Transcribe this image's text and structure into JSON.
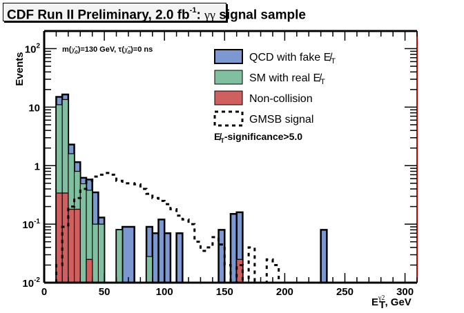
{
  "title": {
    "main": "CDF Run II Preliminary, 2.0 fb",
    "sup": "-1",
    "suffix": ": ",
    "greek": "γγ",
    "tail": " signal sample"
  },
  "chart_data": {
    "type": "bar",
    "subtype": "stacked-histogram-log",
    "title": "CDF Run II Preliminary, 2.0 fb^-1: γγ signal sample",
    "xlabel": "E_T^γ2, GeV",
    "ylabel": "Events",
    "xlim": [
      0,
      310
    ],
    "ylim": [
      0.01,
      200
    ],
    "yscale": "log",
    "bin_width": 5,
    "x_ticks": [
      0,
      50,
      100,
      150,
      200,
      250,
      300
    ],
    "x_tick_labels": [
      "0",
      "50",
      "100",
      "150",
      "200",
      "250",
      "300"
    ],
    "y_ticks": [
      0.01,
      0.1,
      1,
      10,
      100
    ],
    "y_tick_labels": [
      {
        "base": "10",
        "exp": "-2"
      },
      {
        "base": "10",
        "exp": "-1"
      },
      {
        "base": "1",
        "exp": ""
      },
      {
        "base": "10",
        "exp": ""
      },
      {
        "base": "10",
        "exp": "2"
      }
    ],
    "annotation": "m(χ̃₀)=130 GeV, τ(χ̃₀)=0 ns",
    "cut_label": "E̸T-significance>5.0",
    "legend_position": "top-right",
    "series": [
      {
        "name": "Non-collision",
        "color": "#d06060",
        "bins": [
          {
            "x0": 10,
            "x1": 15,
            "value": 0.34
          },
          {
            "x0": 15,
            "x1": 20,
            "value": 0.34
          },
          {
            "x0": 20,
            "x1": 25,
            "value": 0.18
          },
          {
            "x0": 25,
            "x1": 30,
            "value": 0.18
          },
          {
            "x0": 35,
            "x1": 40,
            "value": 0.025
          },
          {
            "x0": 160,
            "x1": 165,
            "value": 0.025
          }
        ]
      },
      {
        "name": "SM with real E̸T",
        "color": "#80c0a0",
        "bins": [
          {
            "x0": 10,
            "x1": 15,
            "value": 11.0
          },
          {
            "x0": 15,
            "x1": 20,
            "value": 13.5
          },
          {
            "x0": 20,
            "x1": 25,
            "value": 1.6
          },
          {
            "x0": 25,
            "x1": 30,
            "value": 0.8
          },
          {
            "x0": 30,
            "x1": 35,
            "value": 0.49
          },
          {
            "x0": 35,
            "x1": 40,
            "value": 0.38
          },
          {
            "x0": 40,
            "x1": 45,
            "value": 0.1
          },
          {
            "x0": 45,
            "x1": 50,
            "value": 0.1
          },
          {
            "x0": 60,
            "x1": 65,
            "value": 0.08
          },
          {
            "x0": 85,
            "x1": 90,
            "value": 0.028
          }
        ]
      },
      {
        "name": "QCD with fake E̸T",
        "color": "#7b98d0",
        "bins": [
          {
            "x0": 10,
            "x1": 15,
            "value": 15.0
          },
          {
            "x0": 15,
            "x1": 20,
            "value": 16.5
          },
          {
            "x0": 20,
            "x1": 25,
            "value": 2.3
          },
          {
            "x0": 25,
            "x1": 30,
            "value": 1.15
          },
          {
            "x0": 30,
            "x1": 35,
            "value": 0.62
          },
          {
            "x0": 35,
            "x1": 40,
            "value": 0.58
          },
          {
            "x0": 40,
            "x1": 45,
            "value": 0.35
          },
          {
            "x0": 45,
            "x1": 50,
            "value": 0.13
          },
          {
            "x0": 60,
            "x1": 65,
            "value": 0.08
          },
          {
            "x0": 65,
            "x1": 75,
            "value": 0.09
          },
          {
            "x0": 85,
            "x1": 90,
            "value": 0.09
          },
          {
            "x0": 90,
            "x1": 95,
            "value": 0.07
          },
          {
            "x0": 95,
            "x1": 100,
            "value": 0.12
          },
          {
            "x0": 100,
            "x1": 105,
            "value": 0.07
          },
          {
            "x0": 110,
            "x1": 115,
            "value": 0.07
          },
          {
            "x0": 145,
            "x1": 150,
            "value": 0.08
          },
          {
            "x0": 155,
            "x1": 160,
            "value": 0.15
          },
          {
            "x0": 160,
            "x1": 165,
            "value": 0.16
          },
          {
            "x0": 230,
            "x1": 235,
            "value": 0.08
          }
        ]
      },
      {
        "name": "GMSB signal",
        "style": "dashed-line",
        "color": "#000000",
        "points": [
          {
            "x0": 10,
            "x1": 15,
            "value": 0.02
          },
          {
            "x0": 15,
            "x1": 20,
            "value": 0.09
          },
          {
            "x0": 20,
            "x1": 25,
            "value": 0.2
          },
          {
            "x0": 25,
            "x1": 30,
            "value": 0.28
          },
          {
            "x0": 30,
            "x1": 35,
            "value": 0.4
          },
          {
            "x0": 35,
            "x1": 40,
            "value": 0.55
          },
          {
            "x0": 40,
            "x1": 45,
            "value": 0.65
          },
          {
            "x0": 45,
            "x1": 50,
            "value": 0.7
          },
          {
            "x0": 50,
            "x1": 55,
            "value": 0.75
          },
          {
            "x0": 55,
            "x1": 60,
            "value": 0.7
          },
          {
            "x0": 60,
            "x1": 65,
            "value": 0.55
          },
          {
            "x0": 65,
            "x1": 75,
            "value": 0.5
          },
          {
            "x0": 75,
            "x1": 80,
            "value": 0.48
          },
          {
            "x0": 80,
            "x1": 85,
            "value": 0.4
          },
          {
            "x0": 85,
            "x1": 90,
            "value": 0.33
          },
          {
            "x0": 90,
            "x1": 95,
            "value": 0.28
          },
          {
            "x0": 95,
            "x1": 100,
            "value": 0.25
          },
          {
            "x0": 100,
            "x1": 105,
            "value": 0.22
          },
          {
            "x0": 105,
            "x1": 110,
            "value": 0.18
          },
          {
            "x0": 110,
            "x1": 115,
            "value": 0.14
          },
          {
            "x0": 115,
            "x1": 120,
            "value": 0.12
          },
          {
            "x0": 120,
            "x1": 125,
            "value": 0.1
          },
          {
            "x0": 125,
            "x1": 130,
            "value": 0.05
          },
          {
            "x0": 130,
            "x1": 135,
            "value": 0.035
          },
          {
            "x0": 135,
            "x1": 140,
            "value": 0.04
          },
          {
            "x0": 140,
            "x1": 145,
            "value": 0.06
          },
          {
            "x0": 145,
            "x1": 150,
            "value": 0.045
          },
          {
            "x0": 150,
            "x1": 155,
            "value": 0.02
          },
          {
            "x0": 155,
            "x1": 160,
            "value": 0.01
          },
          {
            "x0": 160,
            "x1": 165,
            "value": 0.02
          },
          {
            "x0": 165,
            "x1": 170,
            "value": 0.01
          },
          {
            "x0": 170,
            "x1": 175,
            "value": 0.04
          },
          {
            "x0": 175,
            "x1": 180,
            "value": 0.01
          },
          {
            "x0": 180,
            "x1": 185,
            "value": 0.01
          },
          {
            "x0": 185,
            "x1": 190,
            "value": 0.025
          },
          {
            "x0": 190,
            "x1": 195,
            "value": 0.02
          },
          {
            "x0": 195,
            "x1": 200,
            "value": 0.01
          }
        ]
      }
    ],
    "legend": [
      {
        "label": "QCD with fake E̸",
        "sub": "T",
        "swatch": "#7b98d0",
        "kind": "fill"
      },
      {
        "label": "SM with real E̸",
        "sub": "T",
        "swatch": "#80c0a0",
        "kind": "fill"
      },
      {
        "label": "Non-collision",
        "sub": "",
        "swatch": "#d06060",
        "kind": "fill"
      },
      {
        "label": "GMSB signal",
        "sub": "",
        "swatch": "#000000",
        "kind": "dashed"
      }
    ]
  },
  "labels": {
    "ylabel": "Events",
    "xlabel_main": "E",
    "xlabel_sub": "T",
    "xlabel_sup": "γ2",
    "xlabel_unit": ", GeV",
    "annotation_prefix": "m(",
    "annotation_mid": ")=130 GeV, τ(",
    "annotation_suffix": ")=0 ns",
    "chi": "χ̃",
    "chi_sub": "0",
    "cut_prefix": "E̸",
    "cut_sub": "T",
    "cut_suffix": "-significance>5.0"
  }
}
